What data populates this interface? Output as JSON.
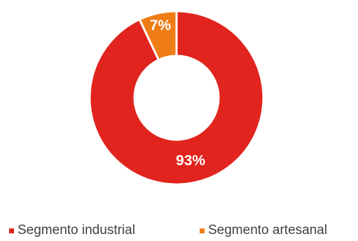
{
  "chart_data": {
    "type": "pie",
    "style": "donut",
    "slices": [
      {
        "label": "Segmento industrial",
        "value": 93,
        "display": "93%",
        "color": "#e1241d"
      },
      {
        "label": "Segmento artesanal",
        "value": 7,
        "display": "7%",
        "color": "#ef7d15"
      }
    ],
    "legend": {
      "placement": "bottom",
      "entries": [
        "Segmento industrial",
        "Segmento artesanal"
      ]
    },
    "title": ""
  }
}
